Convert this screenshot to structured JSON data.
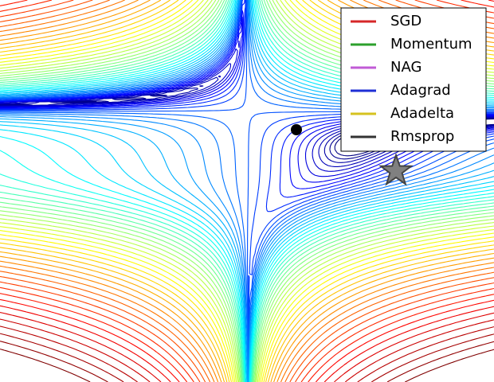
{
  "chart_data": {
    "type": "contour",
    "legend": "upper right",
    "series": [
      {
        "name": "SGD",
        "color": "#d62728"
      },
      {
        "name": "Momentum",
        "color": "#2ca02c"
      },
      {
        "name": "NAG",
        "color": "#c05bd6"
      },
      {
        "name": "Adagrad",
        "color": "#1f2fd6"
      },
      {
        "name": "Adadelta",
        "color": "#d6c21f"
      },
      {
        "name": "Rmsprop",
        "color": "#333333"
      }
    ]
  }
}
